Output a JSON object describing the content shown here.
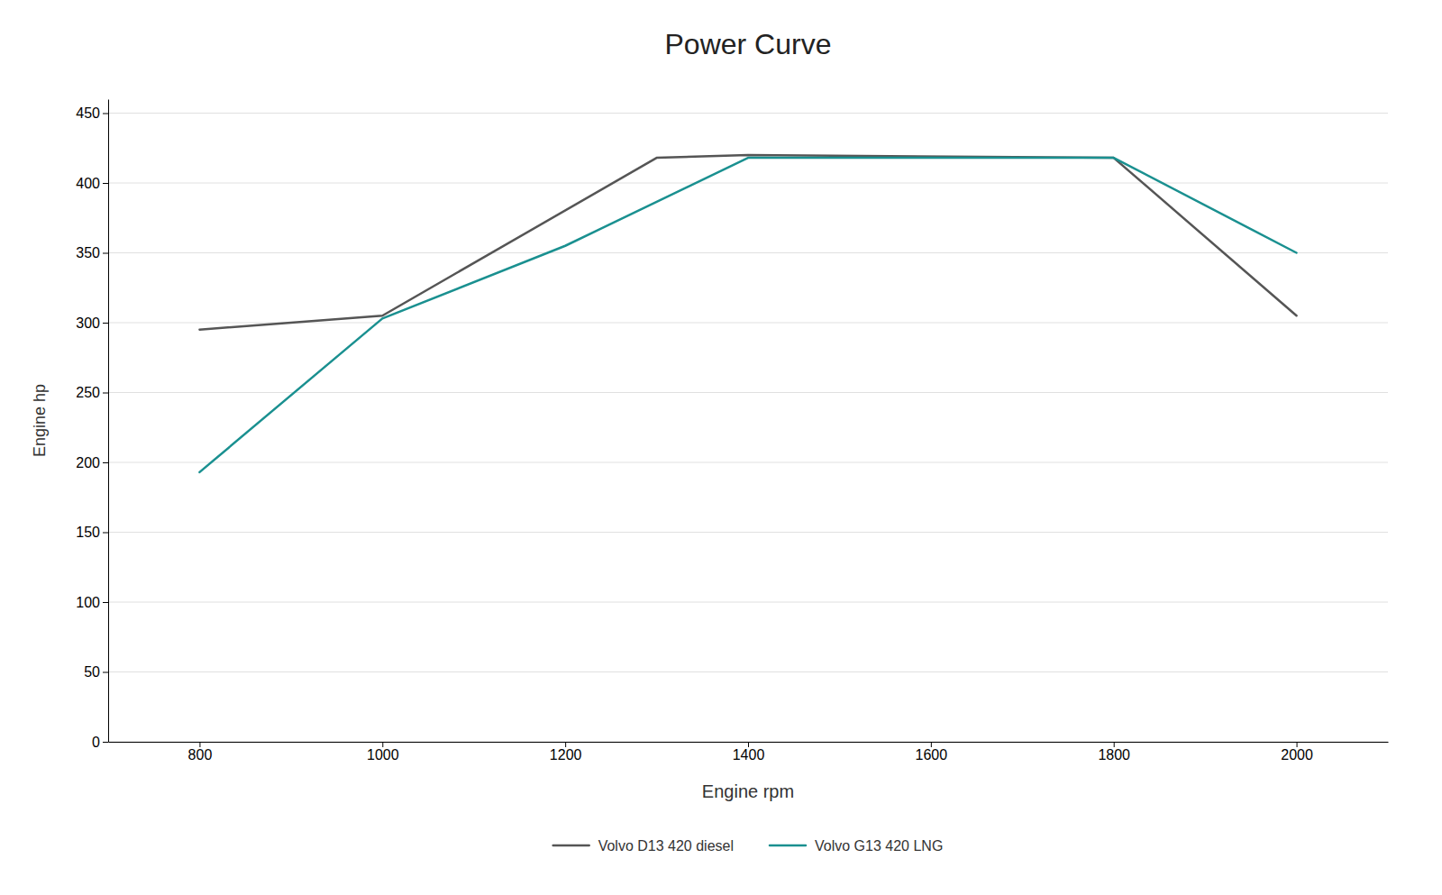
{
  "chart_data": {
    "type": "line",
    "title": "Power Curve",
    "xlabel": "Engine rpm",
    "ylabel": "Engine hp",
    "xlim": [
      700,
      2100
    ],
    "ylim": [
      0,
      460
    ],
    "xticks": [
      800,
      1000,
      1200,
      1400,
      1600,
      1800,
      2000
    ],
    "yticks": [
      0,
      50,
      100,
      150,
      200,
      250,
      300,
      350,
      400,
      450
    ],
    "grid": true,
    "legend": "bottom",
    "series": [
      {
        "name": "Volvo D13 420 diesel",
        "color": "#555555",
        "x": [
          800,
          900,
          1000,
          1300,
          1400,
          1800,
          2000
        ],
        "values": [
          295,
          300,
          305,
          418,
          420,
          418,
          305
        ]
      },
      {
        "name": "Volvo G13 420 LNG",
        "color": "#1a9090",
        "x": [
          800,
          1000,
          1200,
          1400,
          1800,
          2000
        ],
        "values": [
          193,
          303,
          355,
          418,
          418,
          350
        ]
      }
    ]
  }
}
